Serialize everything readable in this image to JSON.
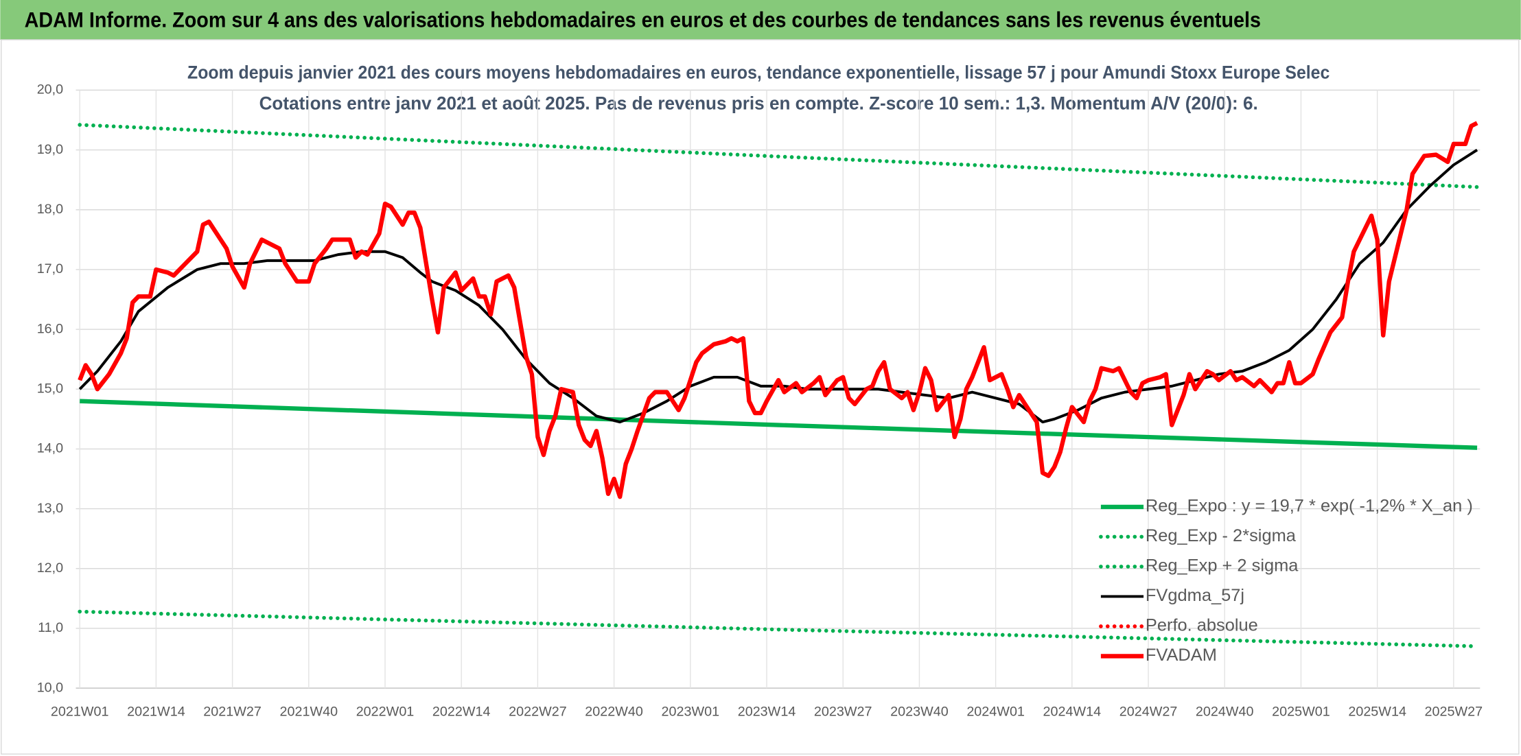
{
  "chart_data": {
    "type": "line",
    "title": "ADAM Informe. Zoom sur 4 ans des valorisations hebdomadaires en euros et des courbes de tendances sans les revenus éventuels",
    "subtitle": [
      "Zoom depuis janvier 2021 des cours moyens hebdomadaires en euros, tendance exponentielle, lissage 57 j pour Amundi Stoxx Europe Selec",
      "Cotations entre janv 2021 et août 2025. Pas de revenus pris en compte. Z-score 10 sem.: 1,3. Momentum A/V (20/0): 6."
    ],
    "xlim": [
      0,
      238
    ],
    "xticks": [
      {
        "value": 0,
        "label": "2021W01"
      },
      {
        "value": 13,
        "label": "2021W14"
      },
      {
        "value": 26,
        "label": "2021W27"
      },
      {
        "value": 39,
        "label": "2021W40"
      },
      {
        "value": 52,
        "label": "2022W01"
      },
      {
        "value": 65,
        "label": "2022W14"
      },
      {
        "value": 78,
        "label": "2022W27"
      },
      {
        "value": 91,
        "label": "2022W40"
      },
      {
        "value": 104,
        "label": "2023W01"
      },
      {
        "value": 117,
        "label": "2023W14"
      },
      {
        "value": 130,
        "label": "2023W27"
      },
      {
        "value": 143,
        "label": "2023W40"
      },
      {
        "value": 156,
        "label": "2024W01"
      },
      {
        "value": 169,
        "label": "2024W14"
      },
      {
        "value": 182,
        "label": "2024W27"
      },
      {
        "value": 195,
        "label": "2024W40"
      },
      {
        "value": 208,
        "label": "2025W01"
      },
      {
        "value": 221,
        "label": "2025W14"
      },
      {
        "value": 234,
        "label": "2025W27"
      }
    ],
    "ylim": [
      10,
      20
    ],
    "yticks": [
      {
        "value": 10,
        "label": "10,0"
      },
      {
        "value": 11,
        "label": "11,0"
      },
      {
        "value": 12,
        "label": "12,0"
      },
      {
        "value": 13,
        "label": "13,0"
      },
      {
        "value": 14,
        "label": "14,0"
      },
      {
        "value": 15,
        "label": "15,0"
      },
      {
        "value": 16,
        "label": "16,0"
      },
      {
        "value": 17,
        "label": "17,0"
      },
      {
        "value": 18,
        "label": "18,0"
      },
      {
        "value": 19,
        "label": "19,0"
      },
      {
        "value": 20,
        "label": "20,0"
      }
    ],
    "grid": true,
    "legend": "bottom-right",
    "series": [
      {
        "name": "Reg_Expo : y = 19,7 * exp( -1,2% *  X_an )",
        "color": "#00b050",
        "line_style": "solid-thick",
        "x": [
          0,
          119,
          238
        ],
        "values": [
          14.8,
          14.4,
          14.02
        ]
      },
      {
        "name": "Reg_Exp - 2*sigma",
        "color": "#00b050",
        "line_style": "dotted",
        "x": [
          0,
          119,
          238
        ],
        "values": [
          11.28,
          10.98,
          10.7
        ]
      },
      {
        "name": "Reg_Exp + 2 sigma",
        "color": "#00b050",
        "line_style": "dotted",
        "x": [
          0,
          119,
          238
        ],
        "values": [
          19.42,
          18.89,
          18.38
        ]
      },
      {
        "name": "FVgdma_57j",
        "color": "#000000",
        "line_style": "solid",
        "x": [
          0,
          3,
          7,
          10,
          15,
          20,
          24,
          28,
          32,
          36,
          40,
          44,
          48,
          52,
          55,
          58,
          60,
          64,
          68,
          72,
          76,
          80,
          84,
          88,
          92,
          96,
          100,
          104,
          108,
          112,
          116,
          120,
          124,
          128,
          132,
          136,
          140,
          144,
          148,
          152,
          156,
          160,
          162,
          164,
          166,
          170,
          174,
          178,
          182,
          186,
          190,
          194,
          198,
          202,
          206,
          210,
          214,
          218,
          222,
          226,
          230,
          234,
          238
        ],
        "values": [
          15.0,
          15.3,
          15.8,
          16.3,
          16.7,
          17.0,
          17.1,
          17.1,
          17.15,
          17.15,
          17.15,
          17.25,
          17.3,
          17.3,
          17.2,
          16.95,
          16.8,
          16.65,
          16.4,
          16.0,
          15.5,
          15.1,
          14.85,
          14.55,
          14.45,
          14.6,
          14.8,
          15.05,
          15.2,
          15.2,
          15.05,
          15.05,
          15.0,
          15.0,
          15.0,
          15.0,
          14.95,
          14.9,
          14.85,
          14.95,
          14.85,
          14.75,
          14.6,
          14.45,
          14.5,
          14.65,
          14.85,
          14.95,
          15.0,
          15.05,
          15.15,
          15.25,
          15.3,
          15.45,
          15.65,
          16.0,
          16.5,
          17.1,
          17.45,
          18.0,
          18.4,
          18.75,
          19.0
        ]
      },
      {
        "name": "Perfo. absolue",
        "color": "#ff0000",
        "line_style": "dotted",
        "x": [],
        "values": []
      },
      {
        "name": "FVADAM",
        "color": "#ff0000",
        "line_style": "solid-thick",
        "x": [
          0,
          1,
          2,
          3,
          5,
          7,
          8,
          9,
          10,
          12,
          13,
          15,
          16,
          18,
          20,
          21,
          22,
          24,
          25,
          26,
          28,
          29,
          31,
          32,
          34,
          35,
          37,
          39,
          40,
          42,
          43,
          46,
          47,
          48,
          49,
          51,
          52,
          53,
          55,
          56,
          57,
          58,
          60,
          61,
          62,
          64,
          65,
          67,
          68,
          69,
          70,
          71,
          73,
          74,
          76,
          77,
          78,
          79,
          80,
          81,
          82,
          84,
          85,
          86,
          87,
          88,
          89,
          90,
          91,
          92,
          93,
          94,
          95,
          97,
          98,
          100,
          101,
          102,
          103,
          105,
          106,
          108,
          110,
          111,
          112,
          113,
          114,
          115,
          116,
          117,
          119,
          120,
          122,
          123,
          125,
          126,
          127,
          129,
          130,
          131,
          132,
          134,
          135,
          136,
          137,
          138,
          140,
          141,
          142,
          143,
          144,
          145,
          146,
          148,
          149,
          150,
          151,
          152,
          153,
          154,
          155,
          157,
          158,
          159,
          160,
          162,
          163,
          164,
          165,
          166,
          167,
          168,
          169,
          171,
          172,
          173,
          174,
          176,
          177,
          179,
          180,
          181,
          182,
          184,
          185,
          186,
          188,
          189,
          190,
          192,
          193,
          194,
          196,
          197,
          198,
          200,
          201,
          203,
          204,
          205,
          206,
          207,
          208,
          210,
          211,
          213,
          215,
          216,
          217,
          219,
          220,
          221,
          222,
          223,
          225,
          226,
          227,
          229,
          231,
          233,
          234,
          236,
          237,
          238
        ],
        "values": [
          15.15,
          15.4,
          15.25,
          15.0,
          15.25,
          15.6,
          15.85,
          16.45,
          16.55,
          16.55,
          17.0,
          16.95,
          16.9,
          17.1,
          17.3,
          17.75,
          17.8,
          17.5,
          17.35,
          17.05,
          16.7,
          17.1,
          17.5,
          17.45,
          17.35,
          17.1,
          16.8,
          16.8,
          17.1,
          17.35,
          17.5,
          17.5,
          17.2,
          17.3,
          17.25,
          17.6,
          18.1,
          18.05,
          17.75,
          17.95,
          17.95,
          17.7,
          16.5,
          15.95,
          16.7,
          16.95,
          16.65,
          16.85,
          16.55,
          16.55,
          16.25,
          16.8,
          16.9,
          16.7,
          15.55,
          15.25,
          14.2,
          13.9,
          14.3,
          14.55,
          15.0,
          14.95,
          14.4,
          14.15,
          14.05,
          14.3,
          13.85,
          13.25,
          13.5,
          13.2,
          13.75,
          14.0,
          14.3,
          14.85,
          14.95,
          14.95,
          14.8,
          14.65,
          14.85,
          15.45,
          15.6,
          15.75,
          15.8,
          15.85,
          15.8,
          15.85,
          14.8,
          14.6,
          14.6,
          14.8,
          15.15,
          14.95,
          15.1,
          14.95,
          15.1,
          15.2,
          14.9,
          15.15,
          15.2,
          14.85,
          14.75,
          15.0,
          15.05,
          15.3,
          15.45,
          15.0,
          14.85,
          14.95,
          14.65,
          14.95,
          15.35,
          15.15,
          14.65,
          14.9,
          14.2,
          14.5,
          15.0,
          15.2,
          15.45,
          15.7,
          15.15,
          15.25,
          15.0,
          14.7,
          14.9,
          14.6,
          14.45,
          13.6,
          13.55,
          13.7,
          13.95,
          14.35,
          14.7,
          14.45,
          14.8,
          15.0,
          15.35,
          15.3,
          15.35,
          14.95,
          14.85,
          15.1,
          15.15,
          15.2,
          15.25,
          14.4,
          14.9,
          15.25,
          15.0,
          15.3,
          15.25,
          15.15,
          15.3,
          15.15,
          15.2,
          15.05,
          15.15,
          14.95,
          15.1,
          15.1,
          15.45,
          15.1,
          15.1,
          15.25,
          15.5,
          15.95,
          16.2,
          16.8,
          17.3,
          17.7,
          17.9,
          17.5,
          15.9,
          16.8,
          17.6,
          18.0,
          18.6,
          18.9,
          18.92,
          18.8,
          19.1,
          19.1,
          19.4,
          19.45
        ]
      }
    ]
  }
}
